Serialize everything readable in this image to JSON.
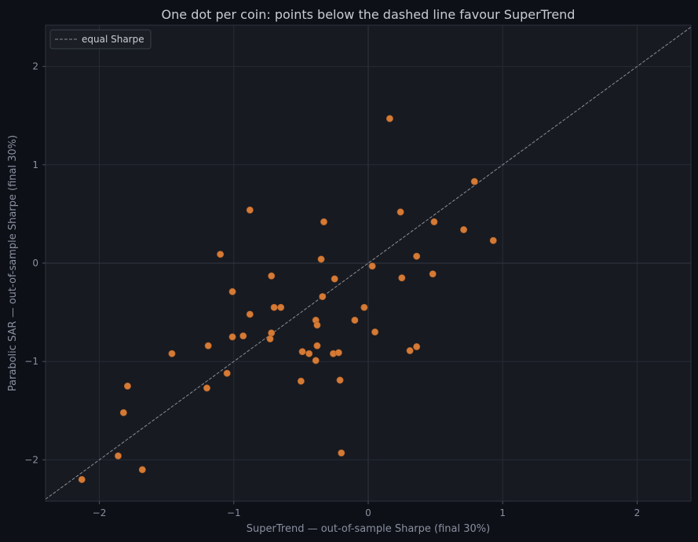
{
  "chart_data": {
    "type": "scatter",
    "title": "One dot per coin: points below the dashed line favour SuperTrend",
    "xlabel": "SuperTrend — out-of-sample Sharpe (final 30%)",
    "ylabel": "Parabolic SAR — out-of-sample Sharpe (final 30%)",
    "xlim": [
      -2.4,
      2.4
    ],
    "ylim": [
      -2.42,
      2.42
    ],
    "xticks": [
      -2,
      -1,
      0,
      1,
      2
    ],
    "yticks": [
      -2,
      -1,
      0,
      1,
      2
    ],
    "xtick_labels": [
      "−2",
      "−1",
      "0",
      "1",
      "2"
    ],
    "ytick_labels": [
      "−2",
      "−1",
      "0",
      "1",
      "2"
    ],
    "grid": true,
    "legend": {
      "placement": "top-left",
      "entries": [
        "equal Sharpe"
      ]
    },
    "reference_line": {
      "label": "equal Sharpe",
      "slope": 1,
      "intercept": 0,
      "style": "dashed"
    },
    "series": [
      {
        "points": [
          [
            0.16,
            1.47
          ],
          [
            0.79,
            0.83
          ],
          [
            -0.88,
            0.54
          ],
          [
            0.24,
            0.52
          ],
          [
            -0.33,
            0.42
          ],
          [
            0.49,
            0.42
          ],
          [
            0.71,
            0.34
          ],
          [
            0.93,
            0.23
          ],
          [
            -1.1,
            0.09
          ],
          [
            0.36,
            0.07
          ],
          [
            -0.35,
            0.04
          ],
          [
            0.03,
            -0.03
          ],
          [
            -0.72,
            -0.13
          ],
          [
            0.48,
            -0.11
          ],
          [
            -0.25,
            -0.16
          ],
          [
            0.25,
            -0.15
          ],
          [
            -1.01,
            -0.29
          ],
          [
            -0.34,
            -0.34
          ],
          [
            -0.7,
            -0.45
          ],
          [
            -0.65,
            -0.45
          ],
          [
            -0.03,
            -0.45
          ],
          [
            -0.88,
            -0.52
          ],
          [
            -0.39,
            -0.58
          ],
          [
            -0.1,
            -0.58
          ],
          [
            -0.38,
            -0.63
          ],
          [
            0.05,
            -0.7
          ],
          [
            -0.72,
            -0.71
          ],
          [
            -1.01,
            -0.75
          ],
          [
            -0.93,
            -0.74
          ],
          [
            -0.73,
            -0.77
          ],
          [
            -1.19,
            -0.84
          ],
          [
            -0.38,
            -0.84
          ],
          [
            0.36,
            -0.85
          ],
          [
            -1.46,
            -0.92
          ],
          [
            -0.49,
            -0.9
          ],
          [
            -0.44,
            -0.92
          ],
          [
            -0.26,
            -0.92
          ],
          [
            -0.22,
            -0.91
          ],
          [
            0.31,
            -0.89
          ],
          [
            -0.39,
            -0.99
          ],
          [
            -1.05,
            -1.12
          ],
          [
            -0.5,
            -1.2
          ],
          [
            -0.21,
            -1.19
          ],
          [
            -1.79,
            -1.25
          ],
          [
            -1.2,
            -1.27
          ],
          [
            -1.82,
            -1.52
          ],
          [
            -0.2,
            -1.93
          ],
          [
            -1.86,
            -1.96
          ],
          [
            -1.68,
            -2.1
          ],
          [
            -2.13,
            -2.2
          ]
        ]
      }
    ],
    "colors": {
      "background": "#0d1017",
      "plot_background": "#171a21",
      "grid": "#272b34",
      "zero_line": "#33373f",
      "marker": "#d57a35",
      "marker_edge": "#a35a26",
      "reference_line": "#8c8f96",
      "text": "#c9ccd3",
      "muted_text": "#8b90a0"
    }
  }
}
